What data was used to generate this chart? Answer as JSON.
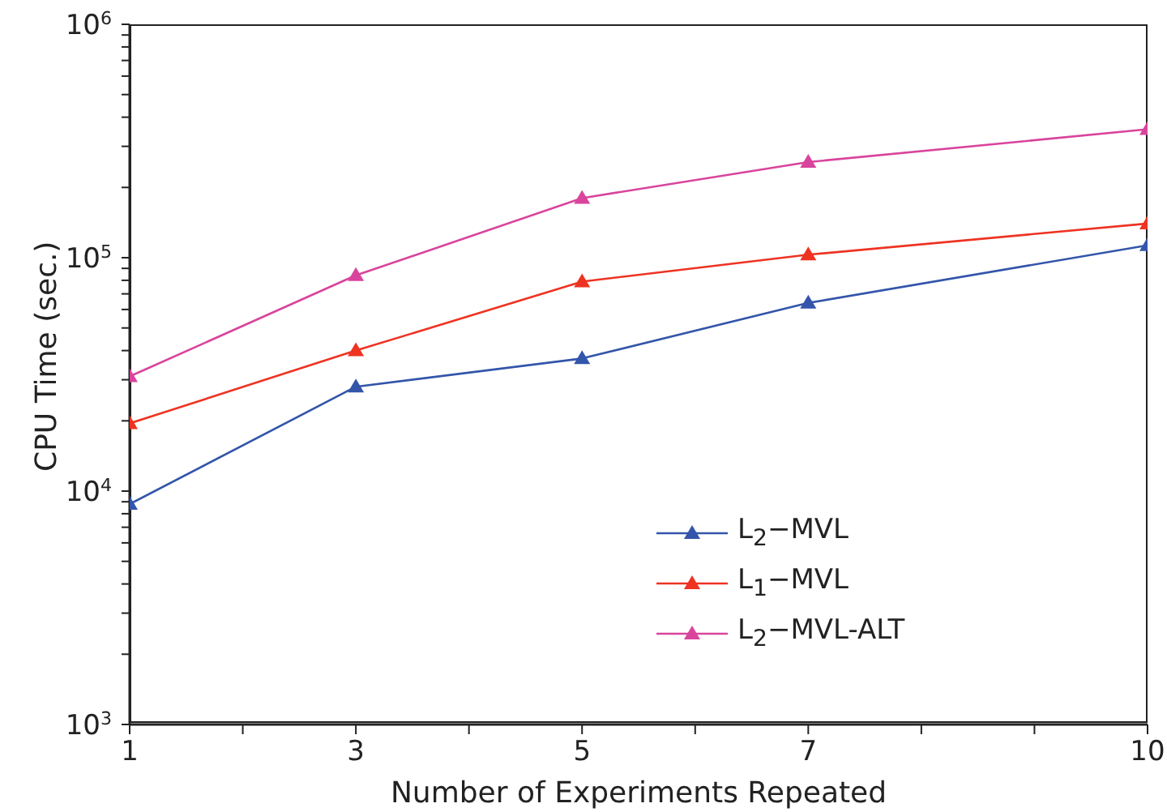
{
  "chart_data": {
    "type": "line",
    "xlabel": "Number of Experiments Repeated",
    "ylabel": "CPU Time (sec.)",
    "x": [
      1,
      3,
      5,
      7,
      10
    ],
    "series": [
      {
        "name": "L$_{2}$−MVL",
        "color": "#3355aa",
        "values": [
          8800,
          28000,
          37000,
          64000,
          113000
        ]
      },
      {
        "name": "L$_{1}$−MVL",
        "color": "#ee3322",
        "values": [
          19500,
          40000,
          79000,
          103000,
          140000
        ]
      },
      {
        "name": "L$_{2}$−MVL-ALT",
        "color": "#d9449c",
        "values": [
          31000,
          84000,
          180000,
          257000,
          355000
        ]
      }
    ],
    "log": "y",
    "xlim": [
      1,
      10
    ],
    "xticks": [
      1,
      {
        "value": 2,
        "label": null
      },
      3,
      {
        "value": 4,
        "label": null
      },
      5,
      {
        "value": 6,
        "label": null
      },
      7,
      {
        "value": 8,
        "label": null
      },
      {
        "value": 9,
        "label": null
      },
      10
    ],
    "ylim": [
      1000,
      1000000
    ],
    "yticks": [
      {
        "value": 1000,
        "label": "10$^{3}$"
      },
      {
        "value": 2000,
        "label": null
      },
      {
        "value": 3000,
        "label": null
      },
      {
        "value": 4000,
        "label": null
      },
      {
        "value": 5000,
        "label": null
      },
      {
        "value": 6000,
        "label": null
      },
      {
        "value": 7000,
        "label": null
      },
      {
        "value": 8000,
        "label": null
      },
      {
        "value": 9000,
        "label": null
      },
      {
        "value": 10000,
        "label": "10$^{4}$"
      },
      {
        "value": 20000,
        "label": null
      },
      {
        "value": 30000,
        "label": null
      },
      {
        "value": 40000,
        "label": null
      },
      {
        "value": 50000,
        "label": null
      },
      {
        "value": 60000,
        "label": null
      },
      {
        "value": 70000,
        "label": null
      },
      {
        "value": 80000,
        "label": null
      },
      {
        "value": 90000,
        "label": null
      },
      {
        "value": 100000,
        "label": "10$^{5}$"
      },
      {
        "value": 200000,
        "label": null
      },
      {
        "value": 300000,
        "label": null
      },
      {
        "value": 400000,
        "label": null
      },
      {
        "value": 500000,
        "label": null
      },
      {
        "value": 600000,
        "label": null
      },
      {
        "value": 700000,
        "label": null
      },
      {
        "value": 800000,
        "label": null
      },
      {
        "value": 900000,
        "label": null
      },
      {
        "value": 1000000,
        "label": "10$^{6}$"
      }
    ],
    "grid": false,
    "legend": "bottom right",
    "marker": "triangle",
    "line_style": "solid"
  }
}
